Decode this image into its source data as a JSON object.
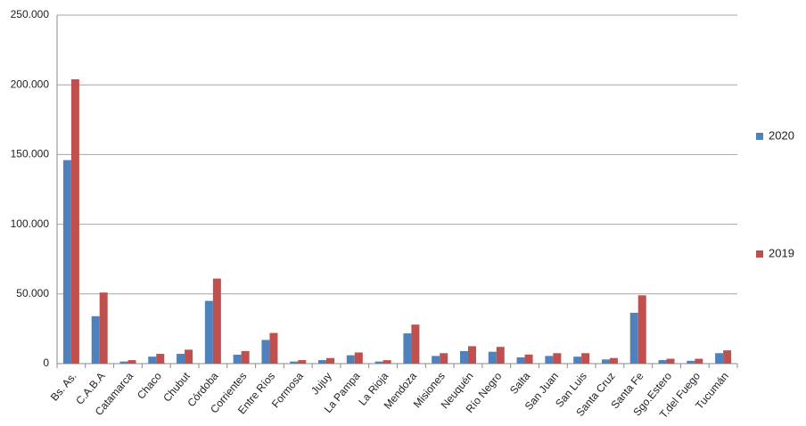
{
  "chart_data": {
    "type": "bar",
    "categories": [
      "Bs. As.",
      "C.A.B.A",
      "Catamarca",
      "Chaco",
      "Chubut",
      "Córdoba",
      "Corrientes",
      "Entre Ríos",
      "Formosa",
      "Jujuy",
      "La Pampa",
      "La Rioja",
      "Mendoza",
      "Misiones",
      "Neuquén",
      "Río Negro",
      "Salta",
      "San Juan",
      "San Luis",
      "Santa Cruz",
      "Santa Fe",
      "Sgo.Estero",
      "T.del Fuego",
      "Tucumán"
    ],
    "series": [
      {
        "name": "2020",
        "color": "#4f81bd",
        "values": [
          146000,
          34000,
          1500,
          5000,
          7000,
          45000,
          6400,
          17000,
          1500,
          2500,
          6000,
          1500,
          21700,
          5500,
          9000,
          8500,
          4500,
          5500,
          5000,
          3000,
          36500,
          2500,
          2000,
          7500
        ]
      },
      {
        "name": "2019",
        "color": "#c0504d",
        "values": [
          204000,
          51000,
          2500,
          7000,
          10000,
          61000,
          9000,
          22000,
          2500,
          4000,
          8000,
          2500,
          28000,
          7500,
          12500,
          12000,
          6500,
          7500,
          7500,
          4000,
          49000,
          3500,
          3500,
          9500
        ]
      }
    ],
    "ylim": [
      0,
      250000
    ],
    "yticks": [
      0,
      {
        "value": 50000,
        "label": "50.000"
      },
      {
        "value": 100000,
        "label": "100.000"
      },
      {
        "value": 150000,
        "label": "150.000"
      },
      {
        "value": 200000,
        "label": "200.000"
      },
      {
        "value": 250000,
        "label": "250.000"
      }
    ],
    "grid": true,
    "legend": "right"
  }
}
